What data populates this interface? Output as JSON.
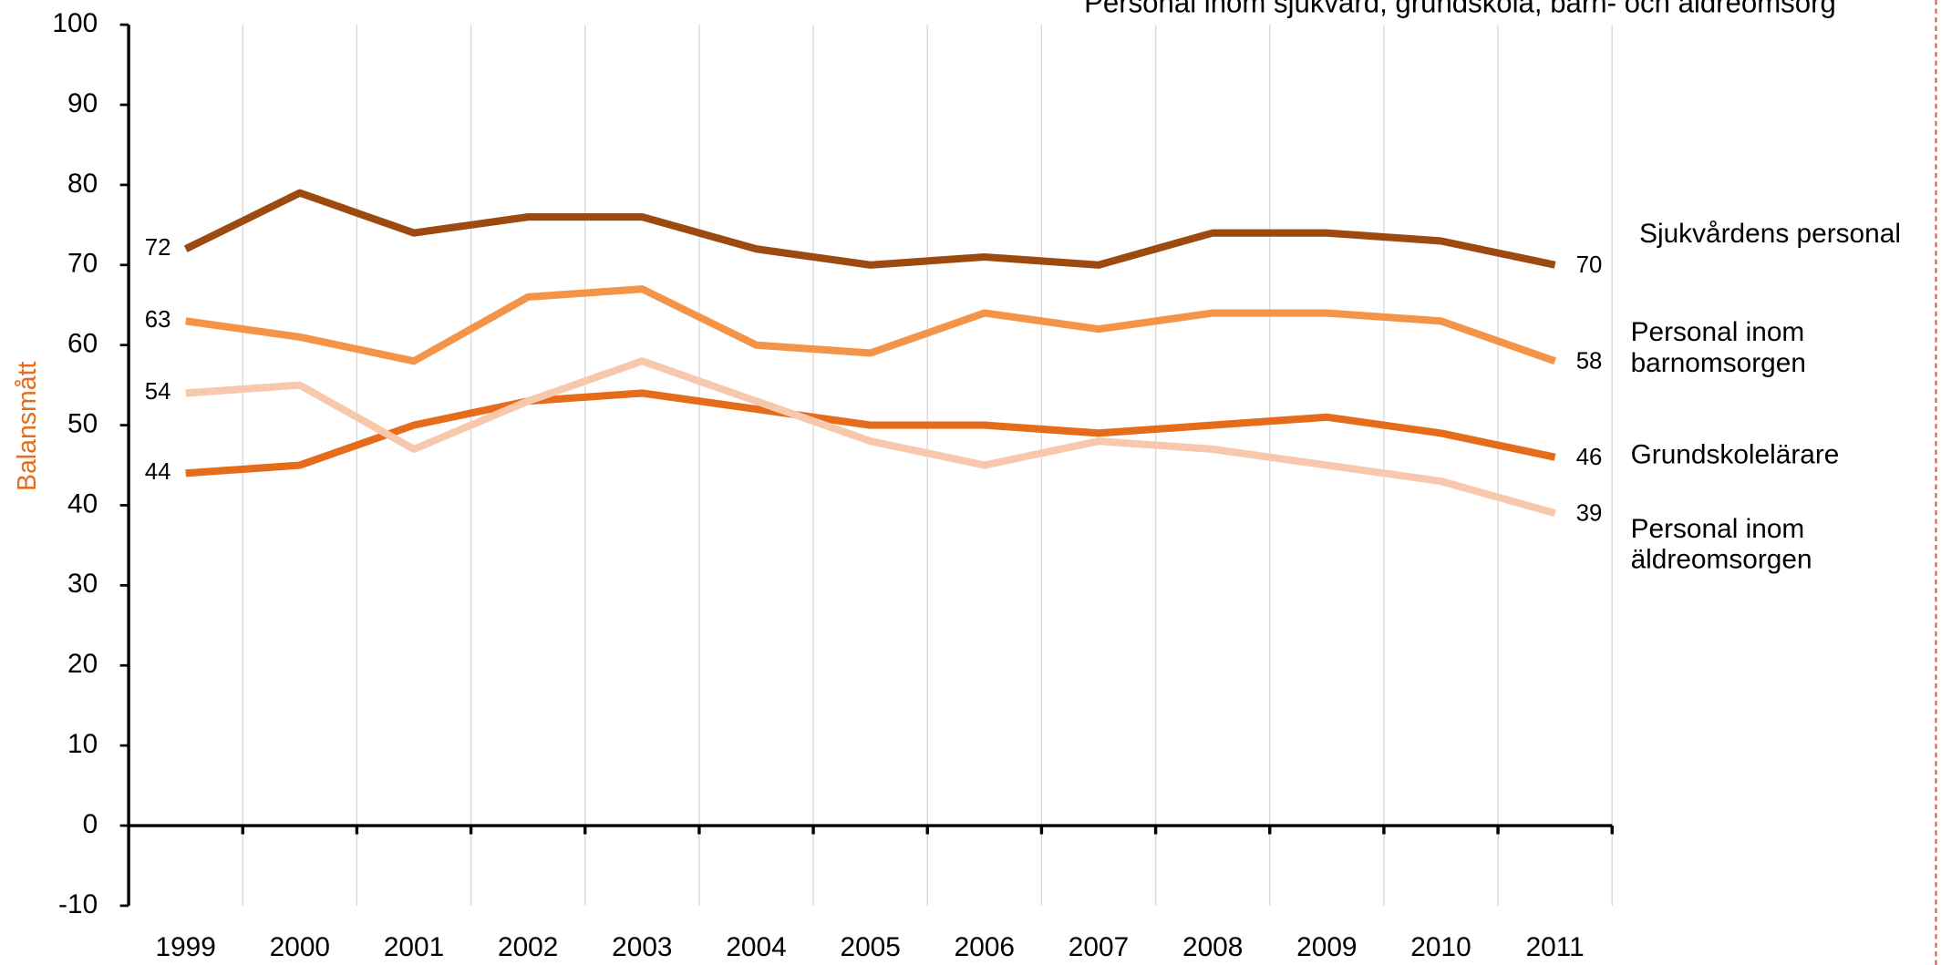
{
  "chart_data": {
    "type": "line",
    "title": "Personal inom sjukvård, grundskola, barn- och äldreomsorg",
    "y_label": "Balansmått",
    "categories": [
      "1999",
      "2000",
      "2001",
      "2002",
      "2003",
      "2004",
      "2005",
      "2006",
      "2007",
      "2008",
      "2009",
      "2010",
      "2011"
    ],
    "series": [
      {
        "name": "Sjukvårdens personal",
        "color": "#9c4a10",
        "values": [
          72,
          79,
          74,
          76,
          76,
          72,
          70,
          71,
          70,
          74,
          74,
          73,
          70
        ]
      },
      {
        "name": "Personal inom barnomsorgen",
        "color": "#f39448",
        "values": [
          63,
          61,
          58,
          66,
          67,
          60,
          59,
          64,
          62,
          64,
          64,
          63,
          58
        ]
      },
      {
        "name": "Grundskolelärare",
        "color": "#e46c1a",
        "values": [
          44,
          45,
          50,
          53,
          54,
          52,
          50,
          50,
          49,
          50,
          51,
          49,
          46
        ]
      },
      {
        "name": "Personal inom äldreomsorgen",
        "color": "#f8c8ad",
        "values": [
          54,
          55,
          47,
          53,
          58,
          53,
          48,
          45,
          48,
          47,
          45,
          43,
          39
        ]
      }
    ],
    "ylim": [
      -10,
      100
    ],
    "yticks": [
      -10,
      0,
      10,
      20,
      30,
      40,
      50,
      60,
      70,
      80,
      90,
      100
    ],
    "grid": true
  }
}
